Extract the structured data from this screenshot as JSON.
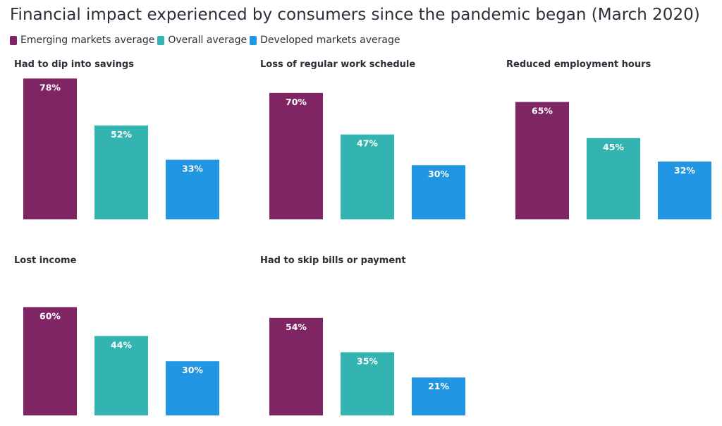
{
  "title": "Financial impact experienced by consumers since the pandemic began (March 2020)",
  "legend": [
    {
      "label": "Emerging markets average",
      "color": "#7f2563"
    },
    {
      "label": "Overall average",
      "color": "#33b4b1"
    },
    {
      "label": "Developed markets average",
      "color": "#2196e3"
    }
  ],
  "chart_data": [
    {
      "type": "bar",
      "title": "Had to dip into savings",
      "categories": [
        "Emerging markets average",
        "Overall average",
        "Developed markets average"
      ],
      "values": [
        78,
        52,
        33
      ],
      "labels": [
        "78%",
        "52%",
        "33%"
      ],
      "ylim": [
        0,
        100
      ]
    },
    {
      "type": "bar",
      "title": "Loss of regular work schedule",
      "categories": [
        "Emerging markets average",
        "Overall average",
        "Developed markets average"
      ],
      "values": [
        70,
        47,
        30
      ],
      "labels": [
        "70%",
        "47%",
        "30%"
      ],
      "ylim": [
        0,
        100
      ]
    },
    {
      "type": "bar",
      "title": "Reduced employment hours",
      "categories": [
        "Emerging markets average",
        "Overall average",
        "Developed markets average"
      ],
      "values": [
        65,
        45,
        32
      ],
      "labels": [
        "65%",
        "45%",
        "32%"
      ],
      "ylim": [
        0,
        100
      ]
    },
    {
      "type": "bar",
      "title": "Lost income",
      "categories": [
        "Emerging markets average",
        "Overall average",
        "Developed markets average"
      ],
      "values": [
        60,
        44,
        30
      ],
      "labels": [
        "60%",
        "44%",
        "30%"
      ],
      "ylim": [
        0,
        100
      ]
    },
    {
      "type": "bar",
      "title": "Had to skip bills or payment",
      "categories": [
        "Emerging markets average",
        "Overall average",
        "Developed markets average"
      ],
      "values": [
        54,
        35,
        21
      ],
      "labels": [
        "54%",
        "35%",
        "21%"
      ],
      "ylim": [
        0,
        100
      ]
    }
  ]
}
